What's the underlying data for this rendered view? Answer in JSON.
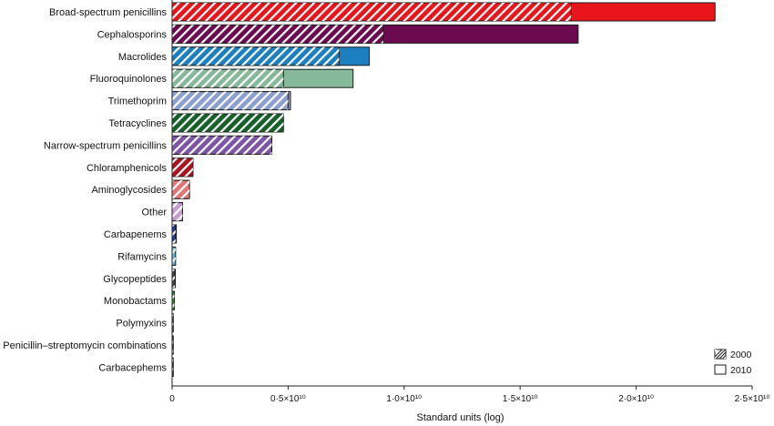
{
  "chart_data": {
    "type": "bar",
    "orientation": "horizontal",
    "title": "",
    "xlabel": "Standard units (log)",
    "ylabel": "",
    "xlim": [
      0,
      25000000000
    ],
    "x_ticks": [
      {
        "value": 0,
        "label": "0"
      },
      {
        "value": 5000000000,
        "label": "0·5×10¹⁰"
      },
      {
        "value": 10000000000,
        "label": "1·0×10¹⁰"
      },
      {
        "value": 15000000000,
        "label": "1·5×10¹⁰"
      },
      {
        "value": 20000000000,
        "label": "2·0×10¹⁰"
      },
      {
        "value": 25000000000,
        "label": "2·5×10¹⁰"
      }
    ],
    "grid": false,
    "legend_position": "bottom-right",
    "categories": [
      "Broad-spectrum penicillins",
      "Cephalosporins",
      "Macrolides",
      "Fluoroquinolones",
      "Trimethoprim",
      "Tetracyclines",
      "Narrow-spectrum penicillins",
      "Chloramphenicols",
      "Aminoglycosides",
      "Other",
      "Carbapenems",
      "Rifamycins",
      "Glycopeptides",
      "Monobactams",
      "Polymyxins",
      "Penicillin–streptomycin combinations",
      "Carbacephems"
    ],
    "colors": [
      "#e8151a",
      "#6b0a4e",
      "#1b7fc0",
      "#86b89a",
      "#8b9fd0",
      "#17602a",
      "#7d55a8",
      "#a8141f",
      "#e27575",
      "#c59ed0",
      "#1e3fa0",
      "#5fb8d8",
      "#4a4a4a",
      "#3f8a3a",
      "#999999",
      "#999999",
      "#999999"
    ],
    "series": [
      {
        "name": "2000",
        "pattern": "hatched",
        "values": [
          17200000000,
          9100000000,
          7200000000,
          4800000000,
          5000000000,
          4800000000,
          4300000000,
          900000000,
          750000000,
          450000000,
          150000000,
          150000000,
          120000000,
          100000000,
          20000000,
          10000000,
          5000000
        ]
      },
      {
        "name": "2010",
        "pattern": "solid",
        "values": [
          23400000000,
          17500000000,
          8500000000,
          7800000000,
          5100000000,
          4700000000,
          4200000000,
          850000000,
          700000000,
          400000000,
          180000000,
          130000000,
          140000000,
          90000000,
          30000000,
          10000000,
          5000000
        ]
      }
    ]
  }
}
